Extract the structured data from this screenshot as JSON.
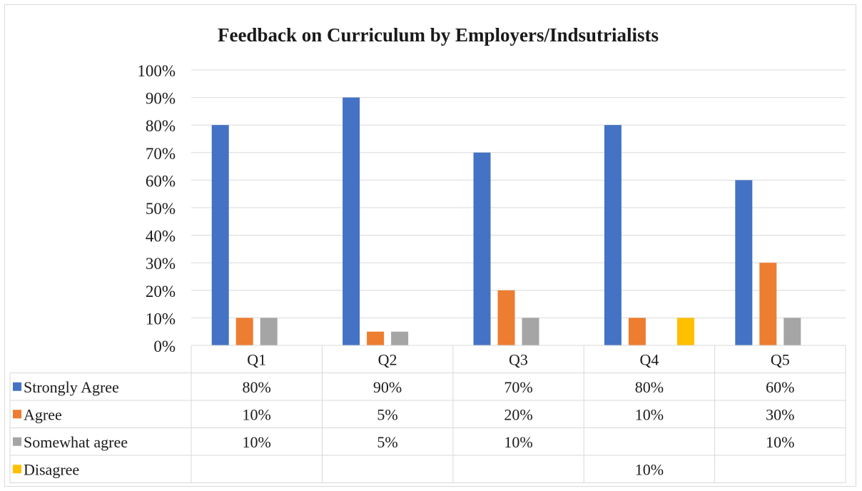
{
  "chart_data": {
    "type": "bar",
    "title": "Feedback on Curriculum by Employers/Indsutrialists",
    "categories": [
      "Q1",
      "Q2",
      "Q3",
      "Q4",
      "Q5"
    ],
    "ylim": [
      0,
      100
    ],
    "y_unit": "%",
    "y_ticks": [
      "0%",
      "10%",
      "20%",
      "30%",
      "40%",
      "50%",
      "60%",
      "70%",
      "80%",
      "90%",
      "100%"
    ],
    "grid": true,
    "legend_position": "data-table",
    "series": [
      {
        "name": "Strongly Agree",
        "color": "#4472c4",
        "values": [
          80,
          90,
          70,
          80,
          60
        ],
        "labels": [
          "80%",
          "90%",
          "70%",
          "80%",
          "60%"
        ]
      },
      {
        "name": "Agree",
        "color": "#ed7d31",
        "values": [
          10,
          5,
          20,
          10,
          30
        ],
        "labels": [
          "10%",
          "5%",
          "20%",
          "10%",
          "30%"
        ]
      },
      {
        "name": "Somewhat agree",
        "color": "#a5a5a5",
        "values": [
          10,
          5,
          10,
          null,
          10
        ],
        "labels": [
          "10%",
          "5%",
          "10%",
          "",
          "10%"
        ]
      },
      {
        "name": "Disagree",
        "color": "#ffc000",
        "values": [
          null,
          null,
          null,
          10,
          null
        ],
        "labels": [
          "",
          "",
          "",
          "10%",
          ""
        ]
      }
    ]
  }
}
